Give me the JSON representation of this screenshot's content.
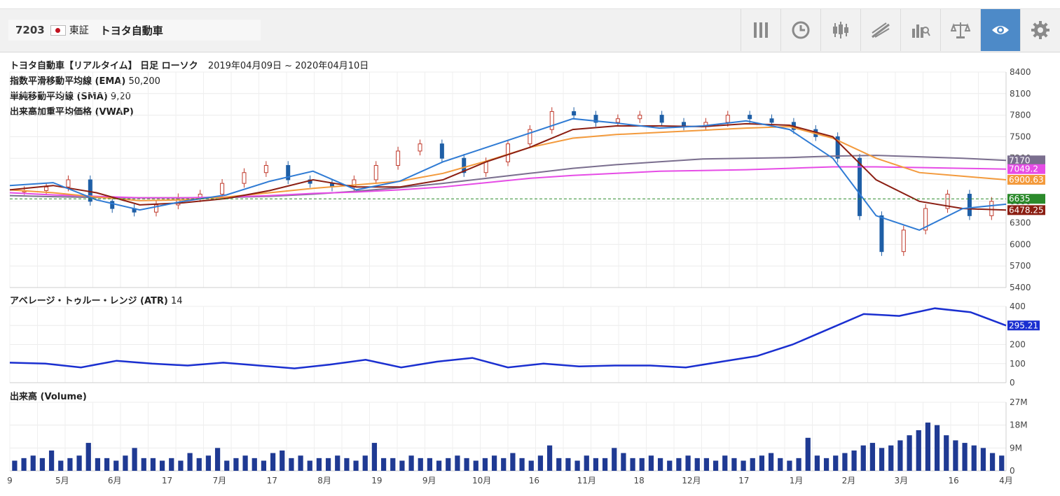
{
  "header": {
    "code": "7203",
    "exchange": "東証",
    "name": "トヨタ自動車"
  },
  "toolbar": {
    "icons": [
      "bars-icon",
      "clock-icon",
      "candlestick-icon",
      "drawing-icon",
      "compare-icon",
      "balance-icon",
      "eye-icon",
      "gear-icon"
    ],
    "active": "eye-icon",
    "active_color": "#4d8ac8"
  },
  "chart_header": {
    "title": "トヨタ自動車【リアルタイム】 日足 ローソク",
    "range": "2019年04月09日 ~ 2020年04月10日",
    "ema_label": "指数平滑移動平均線 (EMA)",
    "ema_params": "50,200",
    "sma_label": "単純移動平均線 (SMA)",
    "sma_params": "9,20",
    "vwap_label": "出来高加重平均価格 (VWAP)",
    "atr_label": "アベレージ・トゥルー・レンジ (ATR)",
    "atr_params": "14",
    "volume_label": "出来高 (Volume)"
  },
  "chart_data": [
    {
      "type": "candlestick",
      "panel": "price",
      "ylim": [
        5400,
        8400
      ],
      "ticks": [
        "8400",
        "8100",
        "7800",
        "7500",
        "7200",
        "6900",
        "6600",
        "6300",
        "6000",
        "5700",
        "5400"
      ],
      "x_ticks": [
        "9",
        "5月",
        "6月",
        "17",
        "7月",
        "17",
        "8月",
        "19",
        "9月",
        "10月",
        "16",
        "11月",
        "18",
        "12月",
        "17",
        "1月",
        "2月",
        "3月",
        "16",
        "4月"
      ],
      "price_marker": {
        "value": 6635,
        "label": "6635",
        "color": "#2b8a2b"
      },
      "series": [
        {
          "name": "EMA 200",
          "color": "#7a6e8e",
          "last": "7170",
          "values": [
            6680,
            6665,
            6655,
            6650,
            6650,
            6655,
            6670,
            6700,
            6740,
            6790,
            6850,
            6920,
            6990,
            7060,
            7110,
            7150,
            7190,
            7200,
            7210,
            7230,
            7240,
            7220,
            7200,
            7170
          ]
        },
        {
          "name": "VWAP",
          "color": "#e64ce6",
          "last": "7049.2",
          "values": [
            6720,
            6690,
            6670,
            6650,
            6650,
            6660,
            6680,
            6710,
            6730,
            6760,
            6800,
            6860,
            6920,
            6960,
            6990,
            7020,
            7030,
            7040,
            7060,
            7080,
            7080,
            7070,
            7060,
            7049
          ]
        },
        {
          "name": "EMA 50",
          "color": "#f39a3c",
          "last": "6900.63",
          "values": [
            6760,
            6720,
            6660,
            6610,
            6620,
            6660,
            6720,
            6780,
            6830,
            6880,
            6990,
            7160,
            7350,
            7480,
            7530,
            7560,
            7590,
            7620,
            7640,
            7480,
            7200,
            7000,
            6950,
            6900
          ]
        },
        {
          "name": "SMA 20",
          "color": "#8b1e12",
          "last": "6478.25",
          "values": [
            6760,
            6820,
            6720,
            6550,
            6580,
            6640,
            6750,
            6900,
            6800,
            6800,
            6900,
            7150,
            7350,
            7600,
            7650,
            7650,
            7640,
            7680,
            7660,
            7500,
            6900,
            6600,
            6500,
            6478
          ]
        },
        {
          "name": "SMA 9",
          "color": "#2f7bd4",
          "last": "",
          "values": [
            6820,
            6860,
            6620,
            6480,
            6600,
            6690,
            6880,
            7020,
            6760,
            6880,
            7150,
            7350,
            7550,
            7750,
            7690,
            7620,
            7650,
            7720,
            7600,
            7200,
            6400,
            6200,
            6500,
            6560
          ]
        }
      ],
      "candles_close": [
        6750,
        6800,
        6900,
        6600,
        6500,
        6450,
        6550,
        6650,
        6700,
        6850,
        7000,
        7100,
        6900,
        6850,
        6800,
        6900,
        7100,
        7300,
        7400,
        7200,
        7000,
        7150,
        7400,
        7600,
        7850,
        7800,
        7700,
        7750,
        7800,
        7700,
        7650,
        7700,
        7800,
        7750,
        7700,
        7600,
        7500,
        7200,
        6400,
        5900,
        6200,
        6500,
        6700,
        6400,
        6600
      ]
    },
    {
      "type": "line",
      "panel": "atr",
      "ylim": [
        0,
        400
      ],
      "ticks": [
        "400",
        "300",
        "200",
        "100",
        "0"
      ],
      "series": [
        {
          "name": "ATR",
          "color": "#1a2fd0",
          "last": "295.21",
          "values": [
            105,
            100,
            80,
            115,
            100,
            90,
            105,
            90,
            75,
            95,
            120,
            80,
            110,
            130,
            80,
            100,
            85,
            90,
            90,
            80,
            110,
            140,
            200,
            280,
            360,
            350,
            390,
            370,
            300
          ]
        }
      ]
    },
    {
      "type": "bar",
      "panel": "volume",
      "ylim": [
        0,
        27
      ],
      "unit": "M",
      "ticks": [
        "27M",
        "18M",
        "9M",
        "0"
      ],
      "color": "#1f3a93",
      "values": [
        4,
        5,
        6,
        5,
        8,
        4,
        5,
        6,
        11,
        5,
        5,
        4,
        6,
        9,
        5,
        5,
        4,
        5,
        4,
        7,
        5,
        6,
        9,
        4,
        5,
        6,
        5,
        4,
        7,
        8,
        5,
        6,
        4,
        5,
        5,
        6,
        5,
        4,
        6,
        11,
        5,
        5,
        4,
        6,
        5,
        5,
        4,
        5,
        6,
        5,
        4,
        5,
        6,
        5,
        7,
        5,
        4,
        6,
        10,
        5,
        5,
        4,
        6,
        5,
        5,
        9,
        7,
        5,
        5,
        6,
        5,
        4,
        5,
        6,
        5,
        5,
        4,
        6,
        5,
        4,
        5,
        6,
        7,
        5,
        4,
        5,
        13,
        6,
        5,
        6,
        7,
        8,
        10,
        11,
        9,
        10,
        12,
        14,
        16,
        19,
        18,
        14,
        12,
        11,
        10,
        9,
        7,
        6
      ]
    }
  ]
}
